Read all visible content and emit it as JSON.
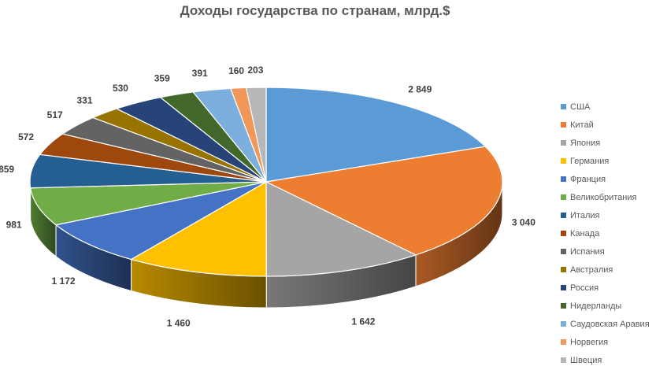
{
  "chart_data": {
    "type": "pie",
    "title": "Доходы государства по странам, млрд.$",
    "categories": [
      "США",
      "Китай",
      "Япония",
      "Германия",
      "Франция",
      "Великобритания",
      "Италия",
      "Канада",
      "Испания",
      "Австралия",
      "Россия",
      "Нидерланды",
      "Саудовская Аравия",
      "Норвегия",
      "Швеция"
    ],
    "values": [
      2849,
      3040,
      1642,
      1460,
      1172,
      981,
      859,
      572,
      517,
      331,
      530,
      359,
      391,
      160,
      203
    ],
    "value_labels": [
      "2 849",
      "3 040",
      "1 642",
      "1 460",
      "1 172",
      "981",
      "859",
      "572",
      "517",
      "331",
      "530",
      "359",
      "391",
      "160",
      "203"
    ],
    "colors": [
      "#5B9BD5",
      "#ED7D31",
      "#A5A5A5",
      "#FFC000",
      "#4472C4",
      "#70AD47",
      "#255E91",
      "#9E480E",
      "#636363",
      "#997300",
      "#264478",
      "#43682B",
      "#7CAFDD",
      "#F1975A",
      "#B7B7B7"
    ],
    "legend_position": "right",
    "style": "3d"
  }
}
